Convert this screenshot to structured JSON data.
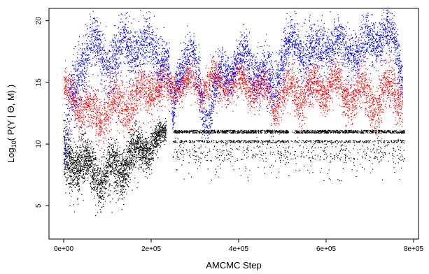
{
  "chart_data": {
    "type": "scatter",
    "title": "",
    "xlabel": "AMCMC Step",
    "ylabel_parts": {
      "prefix": "Log",
      "subscript": "10",
      "suffix": "( P(Y | Θ, M) )"
    },
    "xlim": [
      0,
      780000
    ],
    "ylim": [
      2.3,
      21.0
    ],
    "x_ticks": [
      {
        "value": 0,
        "label": "0e+00"
      },
      {
        "value": 200000,
        "label": "2e+05"
      },
      {
        "value": 400000,
        "label": "4e+05"
      },
      {
        "value": 600000,
        "label": "6e+05"
      },
      {
        "value": 800000,
        "label": "8e+05"
      }
    ],
    "y_ticks": [
      {
        "value": 5,
        "label": "5"
      },
      {
        "value": 10,
        "label": "10"
      },
      {
        "value": 15,
        "label": "15"
      },
      {
        "value": 20,
        "label": "20"
      }
    ],
    "grid": false,
    "legend": "none",
    "series": [
      {
        "color": "#0000ff",
        "x": [
          0,
          20000,
          40000,
          60000,
          80000,
          100000,
          120000,
          140000,
          160000,
          180000,
          200000,
          220000,
          240000,
          250000,
          260000,
          280000,
          300000,
          320000,
          330000,
          340000,
          360000,
          380000,
          400000,
          420000,
          440000,
          460000,
          480000,
          500000,
          520000,
          540000,
          560000,
          580000,
          600000,
          620000,
          640000,
          660000,
          680000,
          700000,
          720000,
          740000,
          760000,
          775000
        ],
        "y": [
          8.5,
          13.5,
          17.0,
          18.0,
          17.5,
          17.0,
          16.5,
          18.5,
          18.0,
          17.0,
          18.5,
          17.0,
          16.0,
          11.5,
          16.0,
          17.0,
          16.5,
          13.5,
          12.0,
          13.5,
          15.5,
          16.0,
          16.5,
          17.0,
          16.0,
          15.5,
          14.5,
          17.5,
          18.0,
          17.5,
          18.0,
          17.0,
          18.0,
          18.5,
          17.5,
          18.0,
          17.5,
          18.0,
          18.5,
          19.0,
          17.5,
          16.0
        ],
        "spread": [
          2.0,
          2.0,
          1.5,
          1.6,
          1.5,
          1.4,
          1.5,
          1.5,
          1.6,
          1.5,
          1.4,
          1.3,
          1.3,
          0.6,
          1.3,
          1.2,
          1.2,
          1.6,
          1.5,
          1.3,
          1.2,
          1.2,
          1.1,
          1.2,
          1.2,
          1.3,
          1.4,
          1.4,
          1.3,
          1.2,
          1.3,
          1.3,
          1.3,
          1.2,
          1.3,
          1.2,
          1.3,
          1.3,
          1.2,
          1.2,
          1.3,
          1.0
        ]
      },
      {
        "color": "#ff0000",
        "x": [
          0,
          20000,
          40000,
          60000,
          80000,
          100000,
          120000,
          140000,
          160000,
          180000,
          200000,
          220000,
          240000,
          260000,
          280000,
          300000,
          320000,
          340000,
          360000,
          380000,
          400000,
          420000,
          440000,
          460000,
          480000,
          500000,
          520000,
          540000,
          560000,
          580000,
          600000,
          620000,
          640000,
          660000,
          680000,
          700000,
          720000,
          740000,
          760000,
          775000
        ],
        "y": [
          14.0,
          14.0,
          13.0,
          12.5,
          12.5,
          12.5,
          13.0,
          13.5,
          13.5,
          14.0,
          14.5,
          14.5,
          14.5,
          15.0,
          15.0,
          15.0,
          14.5,
          15.0,
          15.0,
          15.0,
          15.0,
          15.0,
          14.5,
          14.5,
          13.5,
          14.0,
          14.5,
          14.0,
          14.5,
          14.5,
          14.5,
          15.0,
          14.0,
          14.0,
          14.5,
          13.5,
          13.5,
          14.5,
          14.0,
          14.0
        ],
        "spread": [
          1.0,
          1.0,
          1.2,
          1.2,
          1.3,
          1.3,
          1.3,
          1.3,
          1.3,
          1.2,
          1.0,
          1.0,
          1.0,
          0.8,
          0.8,
          0.8,
          1.0,
          0.9,
          0.9,
          0.9,
          0.9,
          0.9,
          1.0,
          1.0,
          1.2,
          1.1,
          1.1,
          1.2,
          1.1,
          1.1,
          1.1,
          1.0,
          1.2,
          1.2,
          1.2,
          1.3,
          1.3,
          1.2,
          1.2,
          1.2
        ]
      },
      {
        "color": "#000000",
        "x": [
          0,
          20000,
          40000,
          60000,
          80000,
          100000,
          120000,
          140000,
          160000,
          180000,
          200000,
          220000,
          235000
        ],
        "y": [
          8.5,
          9.0,
          8.5,
          8.0,
          7.5,
          7.5,
          8.0,
          8.5,
          9.0,
          9.5,
          10.0,
          10.5,
          11.0
        ],
        "spread": [
          1.5,
          1.5,
          1.3,
          1.3,
          1.4,
          1.4,
          1.3,
          1.3,
          1.2,
          1.0,
          0.9,
          0.7,
          0.5
        ]
      }
    ],
    "plateau": {
      "color": "#000000",
      "x_start": 250000,
      "x_end": 780000,
      "y_main": 11.0,
      "y_secondary": 10.2,
      "y_low_sparse": 9.3,
      "gap_x": [
        515000,
        525000
      ]
    }
  }
}
